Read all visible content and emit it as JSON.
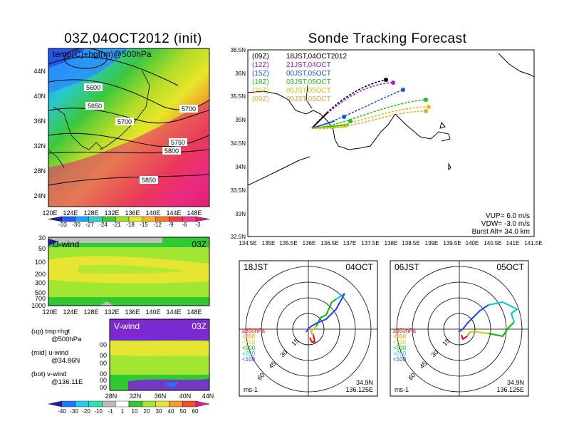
{
  "left": {
    "title": "03Z,04OCT2012 (init)",
    "top_panel": {
      "label": "temp(C)+hgt(m)@500hPa",
      "lat_ticks": [
        "44N",
        "40N",
        "36N",
        "32N",
        "28N",
        "24N"
      ],
      "lon_ticks": [
        "120E",
        "124E",
        "128E",
        "132E",
        "136E",
        "140E",
        "144E",
        "148E"
      ],
      "contour_labels": [
        "5600",
        "5650",
        "5700",
        "5700",
        "5750",
        "5800",
        "5850"
      ],
      "colorbar_labels": [
        "-33",
        "-30",
        "-27",
        "-24",
        "-21",
        "-18",
        "-15",
        "-12",
        "-9",
        "-6",
        "-3"
      ]
    },
    "mid_panel": {
      "label": "U-wind",
      "time": "03Z",
      "p_ticks": [
        "30",
        "50",
        "100",
        "200",
        "300",
        "500",
        "700",
        "1000"
      ],
      "lon_ticks": [
        "120E",
        "124E",
        "128E",
        "132E",
        "136E",
        "140E",
        "144E",
        "148E"
      ]
    },
    "bot_panel": {
      "label": "V-wind",
      "time": "03Z",
      "p_ticks": [
        "100",
        "200",
        "300",
        "500",
        "700",
        "1000"
      ],
      "lat_ticks": [
        "28N",
        "32N",
        "36N",
        "40N",
        "44N"
      ]
    },
    "notes": [
      {
        "line1": "(up) tmp+hgt",
        "line2": "@500hPa"
      },
      {
        "line1": "(mid) u-wind",
        "line2": "@34.86N"
      },
      {
        "line1": "(bot) v-wind",
        "line2": "@136.11E"
      }
    ],
    "wind_colorbar_labels": [
      "-40",
      "-30",
      "-20",
      "-10",
      "-1",
      "1",
      "10",
      "20",
      "30",
      "40",
      "50",
      "60"
    ]
  },
  "right": {
    "title": "Sonde Tracking Forecast",
    "map": {
      "lat_ticks": [
        "36.5N",
        "36N",
        "35.5N",
        "35N",
        "34.5N",
        "34N",
        "33.5N",
        "33N",
        "32.5N"
      ],
      "lon_ticks": [
        "134.5E",
        "135E",
        "135.5E",
        "136E",
        "136.5E",
        "137E",
        "137.5E",
        "138E",
        "138.5E",
        "139E",
        "139.5E",
        "140E",
        "140.5E",
        "141E",
        "141.5E"
      ],
      "legend": [
        {
          "run": "(09Z)",
          "label": "18JST,04OCT2012",
          "color": "#000000"
        },
        {
          "run": "(12Z)",
          "label": "21JST,04OCT",
          "color": "#a020d0"
        },
        {
          "run": "(15Z)",
          "label": "00JST,05OCT",
          "color": "#2050e0"
        },
        {
          "run": "(18Z)",
          "label": "03JST,05OCT",
          "color": "#20c020"
        },
        {
          "run": "(21Z)",
          "label": "06JST,05OCT",
          "color": "#e0c000"
        },
        {
          "run": "(00Z)",
          "label": "09JST,05OCT",
          "color": "#f0a040"
        }
      ],
      "params": {
        "vup": "VUP=  6.0  m/s",
        "vdw": "VDW=  -3.0  m/s",
        "burst": "Burst Alt=  34.0  km"
      }
    },
    "hodographs": [
      {
        "time": "18JST",
        "date": "04OCT",
        "lat": "34.9N",
        "lon": "136.125E",
        "unit": "ms-1"
      },
      {
        "time": "06JST",
        "date": "05OCT",
        "lat": "34.9N",
        "lon": "136.125E",
        "unit": "ms-1"
      }
    ],
    "hodo_rings": [
      "15",
      "30",
      "45",
      "60"
    ],
    "hodo_levels": [
      {
        "label": "≥850hPa",
        "color": "#ff0000"
      },
      {
        "label": "<850",
        "color": "#ff8c00"
      },
      {
        "label": "<700",
        "color": "#d0d000"
      },
      {
        "label": "<500",
        "color": "#00c000"
      },
      {
        "label": "<250",
        "color": "#00c8d8"
      },
      {
        "label": "<100",
        "color": "#2040ff"
      }
    ]
  },
  "colors": {
    "temp_scale": [
      "#2020a0",
      "#1e5aff",
      "#1ea0ff",
      "#28d2d2",
      "#3cc83c",
      "#a0dc28",
      "#e6e628",
      "#f0b428",
      "#f07828",
      "#f03c3c",
      "#f03c8c",
      "#e61e78"
    ],
    "wind_scale": [
      "#1e1ea0",
      "#1e78ff",
      "#28c8f0",
      "#28e6b4",
      "#bebebe",
      "#ffffff",
      "#32c832",
      "#a0e632",
      "#e6e632",
      "#f0a028",
      "#f05028",
      "#e61e96"
    ]
  }
}
